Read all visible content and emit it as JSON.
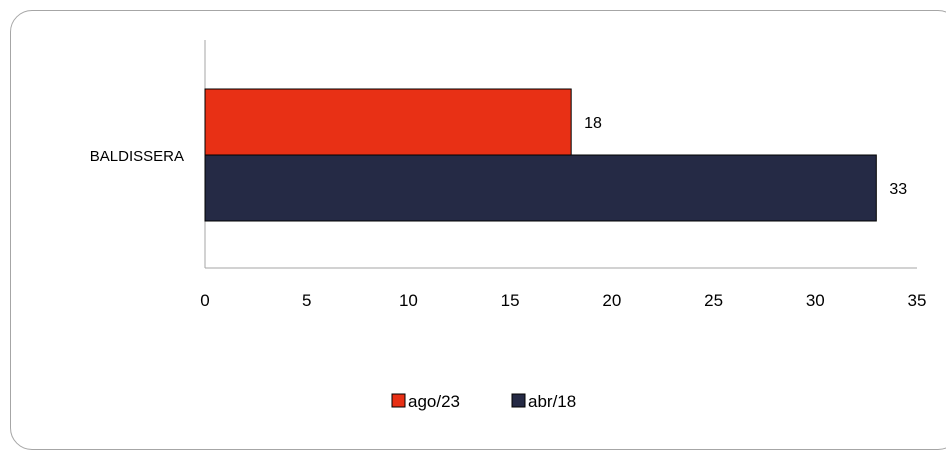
{
  "chart_data": {
    "type": "bar",
    "orientation": "horizontal",
    "categories": [
      "BALDISSERA"
    ],
    "series": [
      {
        "name": "ago/23",
        "values": [
          18
        ],
        "color": "#e83015"
      },
      {
        "name": "abr/18",
        "values": [
          33
        ],
        "color": "#252a45"
      }
    ],
    "xlim": [
      0,
      35
    ],
    "x_ticks": [
      "0",
      "5",
      "10",
      "15",
      "20",
      "25",
      "30",
      "35"
    ],
    "grid": false,
    "legend_position": "bottom"
  }
}
